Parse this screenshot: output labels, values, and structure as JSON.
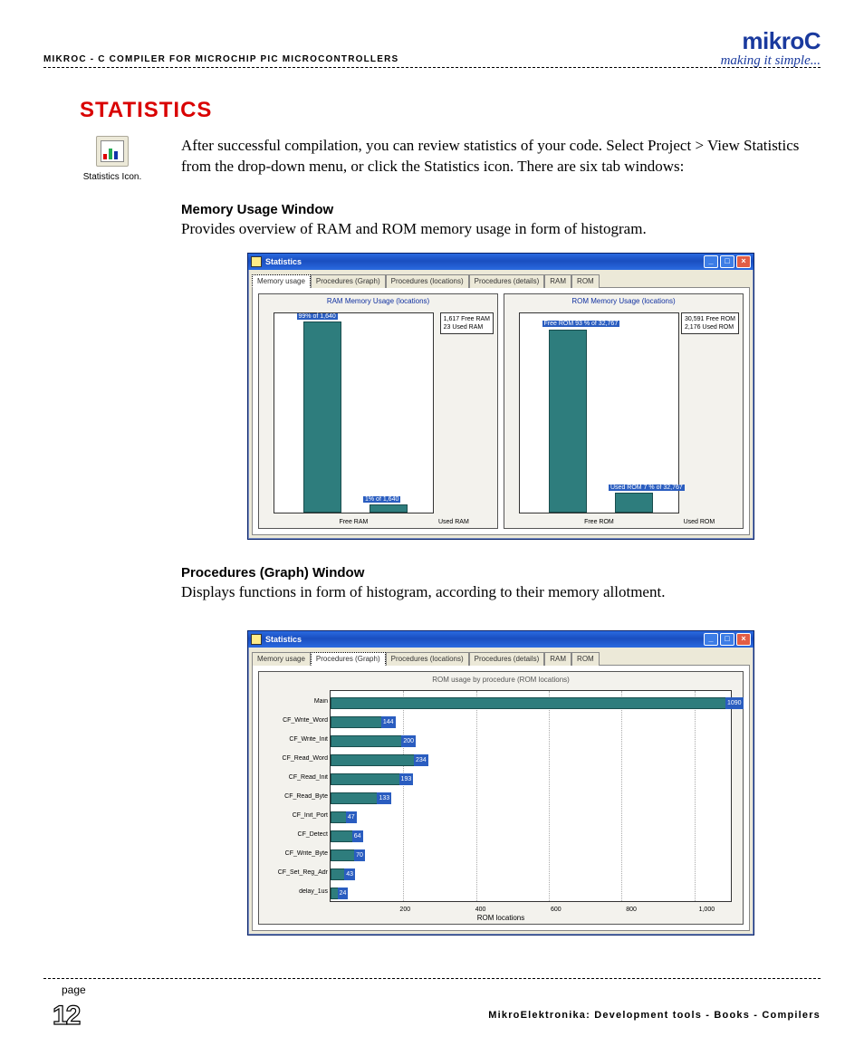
{
  "header": {
    "breadcrumb": "mikroC - C Compiler for Microchip PIC microcontrollers",
    "logo_main": "mikroC",
    "logo_sub": "making it simple..."
  },
  "section_title": "STATISTICS",
  "icon_caption": "Statistics Icon.",
  "intro": "After successful compilation, you can review statistics of your code. Select Project > View Statistics from the drop-down menu, or click the Statistics icon. There are six tab windows:",
  "subsections": [
    {
      "title": "Memory Usage Window",
      "desc": "Provides overview of RAM and ROM memory usage in form of histogram."
    },
    {
      "title": "Procedures (Graph) Window",
      "desc": "Displays functions in form of histogram, according to their memory allotment."
    }
  ],
  "window_title": "Statistics",
  "tabs": [
    "Memory usage",
    "Procedures (Graph)",
    "Procedures (locations)",
    "Procedures (details)",
    "RAM",
    "ROM"
  ],
  "colors": {
    "bar_fill": "#2e7d7d",
    "bar_border": "#194d4d",
    "label_bg": "#2a5dc0",
    "panel_bg": "#f3f2ed",
    "titlebar_color": "#2a6ae0",
    "close_btn": "#e25d45"
  },
  "chart_mem": {
    "type": "bar",
    "panels": [
      {
        "title": "RAM Memory Usage (locations)",
        "x_labels": [
          "Free RAM",
          "Used RAM"
        ],
        "bars": [
          {
            "x_pct": 18,
            "w_pct": 24,
            "h_pct": 96,
            "top_label": "99% of 1,640"
          },
          {
            "x_pct": 60,
            "w_pct": 24,
            "h_pct": 4,
            "top_label": "1% of 1,640"
          }
        ],
        "legend": [
          "1,617 Free RAM",
          "23 Used RAM"
        ]
      },
      {
        "title": "ROM Memory Usage (locations)",
        "x_labels": [
          "Free ROM",
          "Used ROM"
        ],
        "bars": [
          {
            "x_pct": 18,
            "w_pct": 24,
            "h_pct": 92,
            "top_label": "Free ROM 93 % of 32,767"
          },
          {
            "x_pct": 60,
            "w_pct": 24,
            "h_pct": 10,
            "top_label": "Used ROM 7 % of 32,767"
          }
        ],
        "legend": [
          "30,591 Free ROM",
          "2,176 Used ROM"
        ]
      }
    ]
  },
  "chart_proc": {
    "type": "horizontal-bar",
    "title": "ROM usage by procedure (ROM locations)",
    "x_axis_label": "ROM locations",
    "x_max": 1100,
    "x_ticks": [
      200,
      400,
      600,
      800,
      1000
    ],
    "rows": [
      {
        "label": "Main",
        "value": 1090
      },
      {
        "label": "CF_Write_Word",
        "value": 144
      },
      {
        "label": "CF_Write_Init",
        "value": 200
      },
      {
        "label": "CF_Read_Word",
        "value": 234
      },
      {
        "label": "CF_Read_Init",
        "value": 193
      },
      {
        "label": "CF_Read_Byte",
        "value": 133
      },
      {
        "label": "CF_Init_Port",
        "value": 47
      },
      {
        "label": "CF_Detect",
        "value": 64
      },
      {
        "label": "CF_Write_Byte",
        "value": 70
      },
      {
        "label": "CF_Set_Reg_Adr",
        "value": 43
      },
      {
        "label": "delay_1us",
        "value": 24
      }
    ]
  },
  "footer": {
    "page_label": "page",
    "page_number": "12",
    "right_text": "MikroElektronika: Development tools - Books - Compilers"
  }
}
